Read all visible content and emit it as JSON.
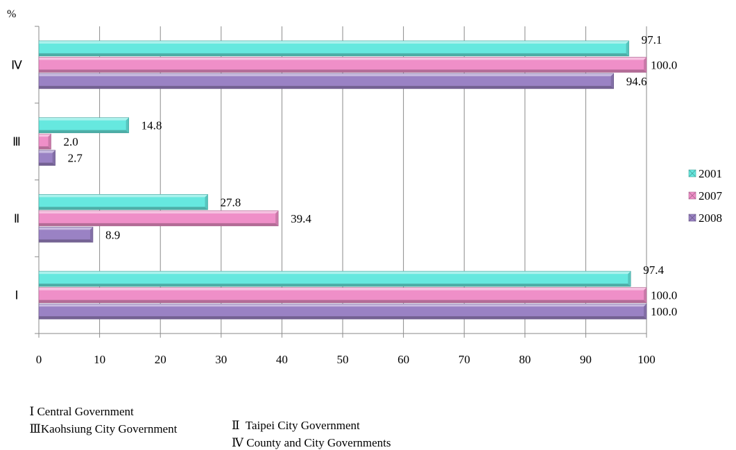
{
  "chart_data": {
    "type": "bar",
    "orientation": "horizontal",
    "unit_label": "%",
    "categories": [
      "Ⅳ",
      "Ⅲ",
      "Ⅱ",
      "Ⅰ"
    ],
    "series": [
      {
        "name": "2001",
        "values": [
          97.1,
          14.8,
          27.8,
          97.4
        ],
        "color": "#66e8df"
      },
      {
        "name": "2007",
        "values": [
          100.0,
          2.0,
          39.4,
          100.0
        ],
        "color": "#ef8fc8"
      },
      {
        "name": "2008",
        "values": [
          94.6,
          2.7,
          8.9,
          100.0
        ],
        "color": "#9a82c4"
      }
    ],
    "xlim": [
      0,
      100
    ],
    "xticks": [
      0,
      10,
      20,
      30,
      40,
      50,
      60,
      70,
      80,
      90,
      100
    ],
    "grid": true,
    "legend_position": "right",
    "value_labels": [
      "97.1",
      "100.0",
      "94.6",
      "14.8",
      "2.0",
      "2.7",
      "27.8",
      "39.4",
      "8.9",
      "97.4",
      "100.0",
      "100.0"
    ]
  },
  "notes": {
    "i": "Ⅰ Central Government",
    "ii": "Ⅱ  Taipei City Government",
    "iii": "ⅢKaohsiung City Government",
    "iv": "Ⅳ County and City Governments"
  }
}
